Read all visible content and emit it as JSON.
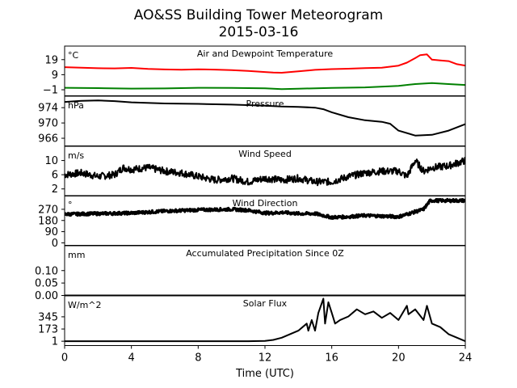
{
  "chart_data": {
    "type": "line",
    "title": "AO&SS Building Tower Meteorogram",
    "subtitle": "2015-03-16",
    "xlabel": "Time (UTC)",
    "xlim": [
      0,
      24
    ],
    "x_ticks": [
      0,
      4,
      8,
      12,
      16,
      20,
      24
    ],
    "grid": false,
    "panels": [
      {
        "title": "Air and Dewpoint Temperature",
        "unit": "°C",
        "ylim": [
          -5,
          28
        ],
        "y_ticks": [
          {
            "v": 19,
            "label": "19"
          },
          {
            "v": 9,
            "label": "9"
          },
          {
            "v": -1,
            "label": "−1"
          }
        ],
        "series": [
          {
            "color": "#ff0000",
            "x": [
              0,
              1,
              2,
              3,
              4,
              5,
              6,
              7,
              8,
              9,
              10,
              11,
              12,
              12.5,
              13,
              14,
              15,
              16,
              17,
              18,
              19,
              20,
              20.5,
              21,
              21.3,
              21.7,
              22,
              22.5,
              23,
              23.5,
              24
            ],
            "values": [
              14,
              13.6,
              13.3,
              13.2,
              13.5,
              12.8,
              12.5,
              12.3,
              12.6,
              12.4,
              12,
              11.5,
              10.8,
              10.4,
              10.3,
              11.2,
              12.2,
              12.7,
              13,
              13.4,
              13.6,
              15,
              17,
              20,
              22,
              22.5,
              19,
              18.5,
              18,
              16,
              15
            ]
          },
          {
            "color": "#008000",
            "x": [
              0,
              2,
              4,
              6,
              8,
              10,
              12,
              13,
              14,
              16,
              18,
              20,
              21,
              22,
              23,
              24
            ],
            "values": [
              0.3,
              0.1,
              -0.2,
              -0.1,
              0.3,
              0.2,
              0,
              -0.6,
              -0.3,
              0.2,
              0.6,
              1.6,
              2.8,
              3.5,
              2.8,
              2.2
            ]
          }
        ]
      },
      {
        "title": "Pressure",
        "unit": "hPa",
        "ylim": [
          964,
          977
        ],
        "y_ticks": [
          {
            "v": 974,
            "label": "974"
          },
          {
            "v": 970,
            "label": "970"
          },
          {
            "v": 966,
            "label": "966"
          }
        ],
        "series": [
          {
            "color": "#000000",
            "x": [
              0,
              1,
              2,
              3,
              4,
              6,
              8,
              10,
              12,
              13,
              14,
              15,
              15.5,
              16,
              17,
              18,
              19,
              19.5,
              20,
              21,
              22,
              23,
              24
            ],
            "values": [
              975.5,
              975.8,
              975.9,
              975.7,
              975.4,
              975.1,
              975,
              974.8,
              974.5,
              974.3,
              974.2,
              974,
              973.6,
              972.8,
              971.5,
              970.7,
              970.3,
              969.8,
              968,
              966.7,
              966.9,
              968,
              969.7
            ]
          }
        ]
      },
      {
        "title": "Wind Speed",
        "unit": "m/s",
        "ylim": [
          0,
          14
        ],
        "y_ticks": [
          {
            "v": 10,
            "label": "10"
          },
          {
            "v": 6,
            "label": "6"
          },
          {
            "v": 2,
            "label": "2"
          }
        ],
        "series": [
          {
            "color": "#000000",
            "noise": 1.0,
            "x": [
              0,
              1,
              2,
              3,
              3.5,
              4,
              5,
              6,
              7,
              8,
              9,
              10,
              11,
              12,
              13,
              14,
              15,
              16,
              17,
              18,
              19,
              20,
              20.5,
              21,
              21.5,
              22,
              23,
              24
            ],
            "values": [
              6,
              6.5,
              5.5,
              6,
              8,
              7.5,
              8,
              7,
              6.5,
              5.5,
              4.5,
              5,
              4,
              5,
              4.5,
              5,
              4,
              4,
              5.5,
              6.5,
              7,
              7,
              5.5,
              10,
              7,
              8,
              8.5,
              10
            ]
          }
        ]
      },
      {
        "title": "Wind Direction",
        "unit": "°",
        "ylim": [
          -20,
          380
        ],
        "y_ticks": [
          {
            "v": 270,
            "label": "270"
          },
          {
            "v": 180,
            "label": "180"
          },
          {
            "v": 90,
            "label": "90"
          },
          {
            "v": 0,
            "label": "0"
          }
        ],
        "series": [
          {
            "color": "#000000",
            "noise": 12,
            "x": [
              0,
              2,
              4,
              6,
              8,
              10,
              11,
              12,
              12.5,
              13,
              14,
              15,
              16,
              17,
              18,
              19,
              20,
              21,
              21.5,
              21.9,
              22,
              23,
              24
            ],
            "values": [
              230,
              235,
              240,
              255,
              265,
              270,
              262,
              240,
              240,
              245,
              235,
              235,
              205,
              210,
              220,
              215,
              210,
              250,
              270,
              340,
              340,
              340,
              340
            ]
          }
        ]
      },
      {
        "title": "Accumulated Precipitation Since 0Z",
        "unit": "mm",
        "ylim": [
          0,
          0.2
        ],
        "y_ticks": [
          {
            "v": 0.1,
            "label": "0.10"
          },
          {
            "v": 0.05,
            "label": "0.05"
          },
          {
            "v": 0.0,
            "label": "0.00"
          }
        ],
        "series": [
          {
            "color": "#000000",
            "x": [
              0,
              24
            ],
            "values": [
              0,
              0
            ]
          }
        ]
      },
      {
        "title": "Solar Flux",
        "unit": "W/m^2",
        "ylim": [
          -60,
          640
        ],
        "y_ticks": [
          {
            "v": 345,
            "label": "345"
          },
          {
            "v": 173,
            "label": "173"
          },
          {
            "v": 1,
            "label": "1"
          }
        ],
        "series": [
          {
            "color": "#000000",
            "x": [
              0,
              11,
              12,
              12.5,
              13,
              14,
              14.5,
              14.6,
              14.8,
              15,
              15.2,
              15.5,
              15.6,
              15.8,
              16,
              16.2,
              16.5,
              17,
              17.5,
              18,
              18.5,
              19,
              19.5,
              20,
              20.5,
              20.6,
              21,
              21.5,
              21.7,
              22,
              22.5,
              23,
              24
            ],
            "values": [
              1,
              1,
              5,
              20,
              50,
              150,
              250,
              150,
              300,
              150,
              400,
              600,
              250,
              550,
              400,
              250,
              300,
              350,
              450,
              380,
              420,
              330,
              400,
              300,
              500,
              380,
              450,
              300,
              500,
              250,
              200,
              100,
              1
            ]
          }
        ]
      }
    ]
  }
}
